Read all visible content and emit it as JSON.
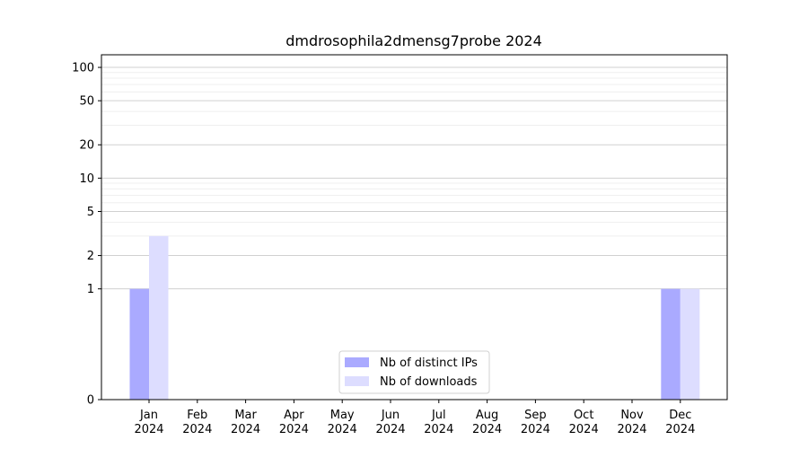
{
  "chart_data": {
    "type": "bar",
    "title": "dmdrosophila2dmensg7probe 2024",
    "xlabel": "",
    "ylabel": "",
    "y_scale": "symlog",
    "y_ticks": [
      0,
      1,
      2,
      5,
      10,
      20,
      50,
      100
    ],
    "y_tick_labels": [
      "0",
      "1",
      "2",
      "5",
      "10",
      "20",
      "50",
      "100"
    ],
    "categories": [
      {
        "month": "Jan",
        "year": "2024"
      },
      {
        "month": "Feb",
        "year": "2024"
      },
      {
        "month": "Mar",
        "year": "2024"
      },
      {
        "month": "Apr",
        "year": "2024"
      },
      {
        "month": "May",
        "year": "2024"
      },
      {
        "month": "Jun",
        "year": "2024"
      },
      {
        "month": "Jul",
        "year": "2024"
      },
      {
        "month": "Aug",
        "year": "2024"
      },
      {
        "month": "Sep",
        "year": "2024"
      },
      {
        "month": "Oct",
        "year": "2024"
      },
      {
        "month": "Nov",
        "year": "2024"
      },
      {
        "month": "Dec",
        "year": "2024"
      }
    ],
    "series": [
      {
        "name": "Nb of distinct IPs",
        "color": "#aaaaff",
        "values": [
          1,
          0,
          0,
          0,
          0,
          0,
          0,
          0,
          0,
          0,
          0,
          1
        ]
      },
      {
        "name": "Nb of downloads",
        "color": "#ddddff",
        "values": [
          3,
          0,
          0,
          0,
          0,
          0,
          0,
          0,
          0,
          0,
          0,
          1
        ]
      }
    ],
    "grid": "horizontal",
    "legend_position": "lower-center"
  }
}
